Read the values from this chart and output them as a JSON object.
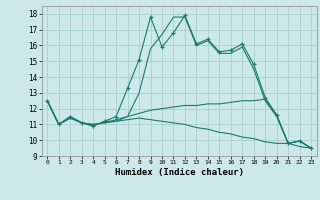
{
  "xlabel": "Humidex (Indice chaleur)",
  "xlim": [
    -0.5,
    23.5
  ],
  "ylim": [
    9,
    18.5
  ],
  "bg_color": "#cce8e8",
  "grid_color": "#aacfcf",
  "line_color": "#1a7a6e",
  "lines": [
    {
      "x": [
        0,
        1,
        2,
        3,
        4,
        5,
        6,
        7,
        8,
        9,
        10,
        11,
        12,
        13,
        14,
        15,
        16,
        17,
        18,
        19,
        20,
        21,
        22,
        23
      ],
      "y": [
        12.5,
        11.0,
        11.5,
        11.1,
        10.9,
        11.2,
        11.5,
        13.3,
        15.1,
        17.8,
        15.9,
        16.8,
        17.9,
        16.1,
        16.4,
        15.6,
        15.7,
        16.1,
        14.8,
        12.7,
        11.6,
        9.8,
        9.95,
        9.5
      ],
      "marker": true
    },
    {
      "x": [
        0,
        1,
        2,
        3,
        4,
        5,
        6,
        7,
        8,
        9,
        10,
        11,
        12,
        13,
        14,
        15,
        16,
        17,
        18,
        19,
        20,
        21,
        22,
        23
      ],
      "y": [
        12.5,
        11.0,
        11.5,
        11.1,
        10.9,
        11.2,
        11.2,
        11.5,
        13.0,
        15.8,
        16.7,
        17.8,
        17.8,
        16.0,
        16.3,
        15.5,
        15.5,
        15.9,
        14.5,
        12.5,
        11.5,
        9.8,
        9.95,
        9.5
      ],
      "marker": false
    },
    {
      "x": [
        0,
        1,
        2,
        3,
        4,
        5,
        6,
        7,
        8,
        9,
        10,
        11,
        12,
        13,
        14,
        15,
        16,
        17,
        18,
        19,
        20,
        21,
        22,
        23
      ],
      "y": [
        12.5,
        11.0,
        11.4,
        11.1,
        11.0,
        11.1,
        11.3,
        11.5,
        11.7,
        11.9,
        12.0,
        12.1,
        12.2,
        12.2,
        12.3,
        12.3,
        12.4,
        12.5,
        12.5,
        12.6,
        11.6,
        9.8,
        9.95,
        9.5
      ],
      "marker": false
    },
    {
      "x": [
        0,
        1,
        2,
        3,
        4,
        5,
        6,
        7,
        8,
        9,
        10,
        11,
        12,
        13,
        14,
        15,
        16,
        17,
        18,
        19,
        20,
        21,
        22,
        23
      ],
      "y": [
        12.5,
        11.0,
        11.4,
        11.1,
        11.0,
        11.1,
        11.2,
        11.3,
        11.4,
        11.3,
        11.2,
        11.1,
        11.0,
        10.8,
        10.7,
        10.5,
        10.4,
        10.2,
        10.1,
        9.9,
        9.8,
        9.8,
        9.6,
        9.5
      ],
      "marker": false
    }
  ],
  "xtick_labels": [
    "0",
    "1",
    "2",
    "3",
    "4",
    "5",
    "6",
    "7",
    "8",
    "9",
    "10",
    "11",
    "12",
    "13",
    "14",
    "15",
    "16",
    "17",
    "18",
    "19",
    "20",
    "21",
    "22",
    "23"
  ],
  "ytick_values": [
    9,
    10,
    11,
    12,
    13,
    14,
    15,
    16,
    17,
    18
  ]
}
